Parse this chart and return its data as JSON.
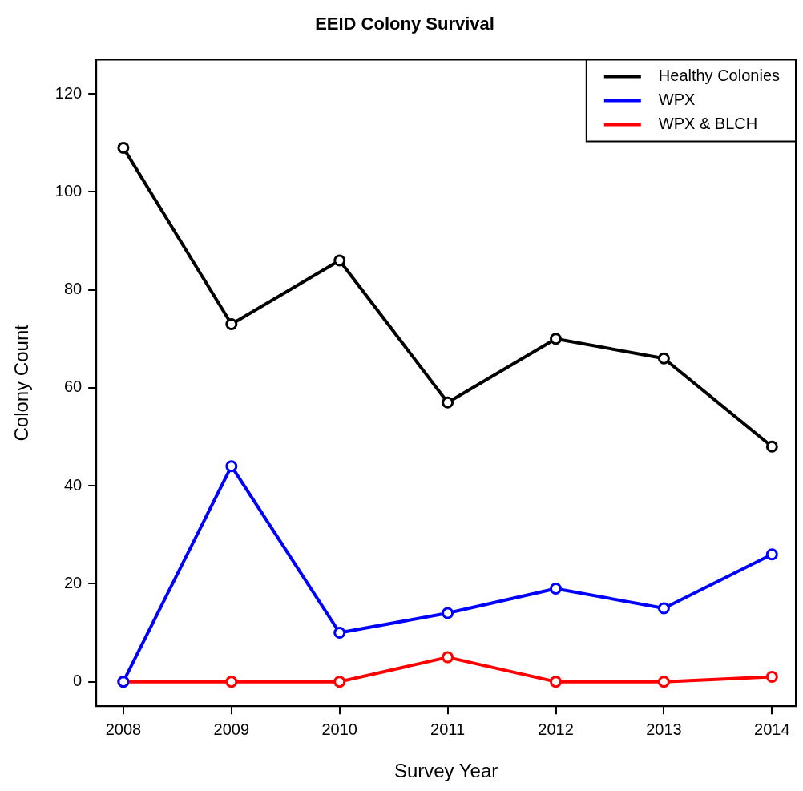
{
  "chart_data": {
    "type": "line",
    "title": "EEID Colony Survival",
    "xlabel": "Survey Year",
    "ylabel": "Colony Count",
    "x": [
      2008,
      2009,
      2010,
      2011,
      2012,
      2013,
      2014
    ],
    "series": [
      {
        "name": "Healthy Colonies",
        "color": "#000000",
        "values": [
          109,
          73,
          86,
          57,
          70,
          66,
          48
        ]
      },
      {
        "name": "WPX",
        "color": "#0000ff",
        "values": [
          0,
          44,
          10,
          14,
          19,
          15,
          26
        ]
      },
      {
        "name": "WPX & BLCH",
        "color": "#ff0000",
        "values": [
          0,
          0,
          0,
          5,
          0,
          0,
          1
        ]
      }
    ],
    "xlim": [
      2007.75,
      2014.22
    ],
    "xticks": [
      2008,
      2009,
      2010,
      2011,
      2012,
      2013,
      2014
    ],
    "ylim": [
      -5,
      127
    ],
    "yticks": [
      0,
      20,
      40,
      60,
      80,
      100,
      120
    ],
    "grid": false,
    "legend": "top right",
    "marker": "circle",
    "line_style": "solid"
  }
}
